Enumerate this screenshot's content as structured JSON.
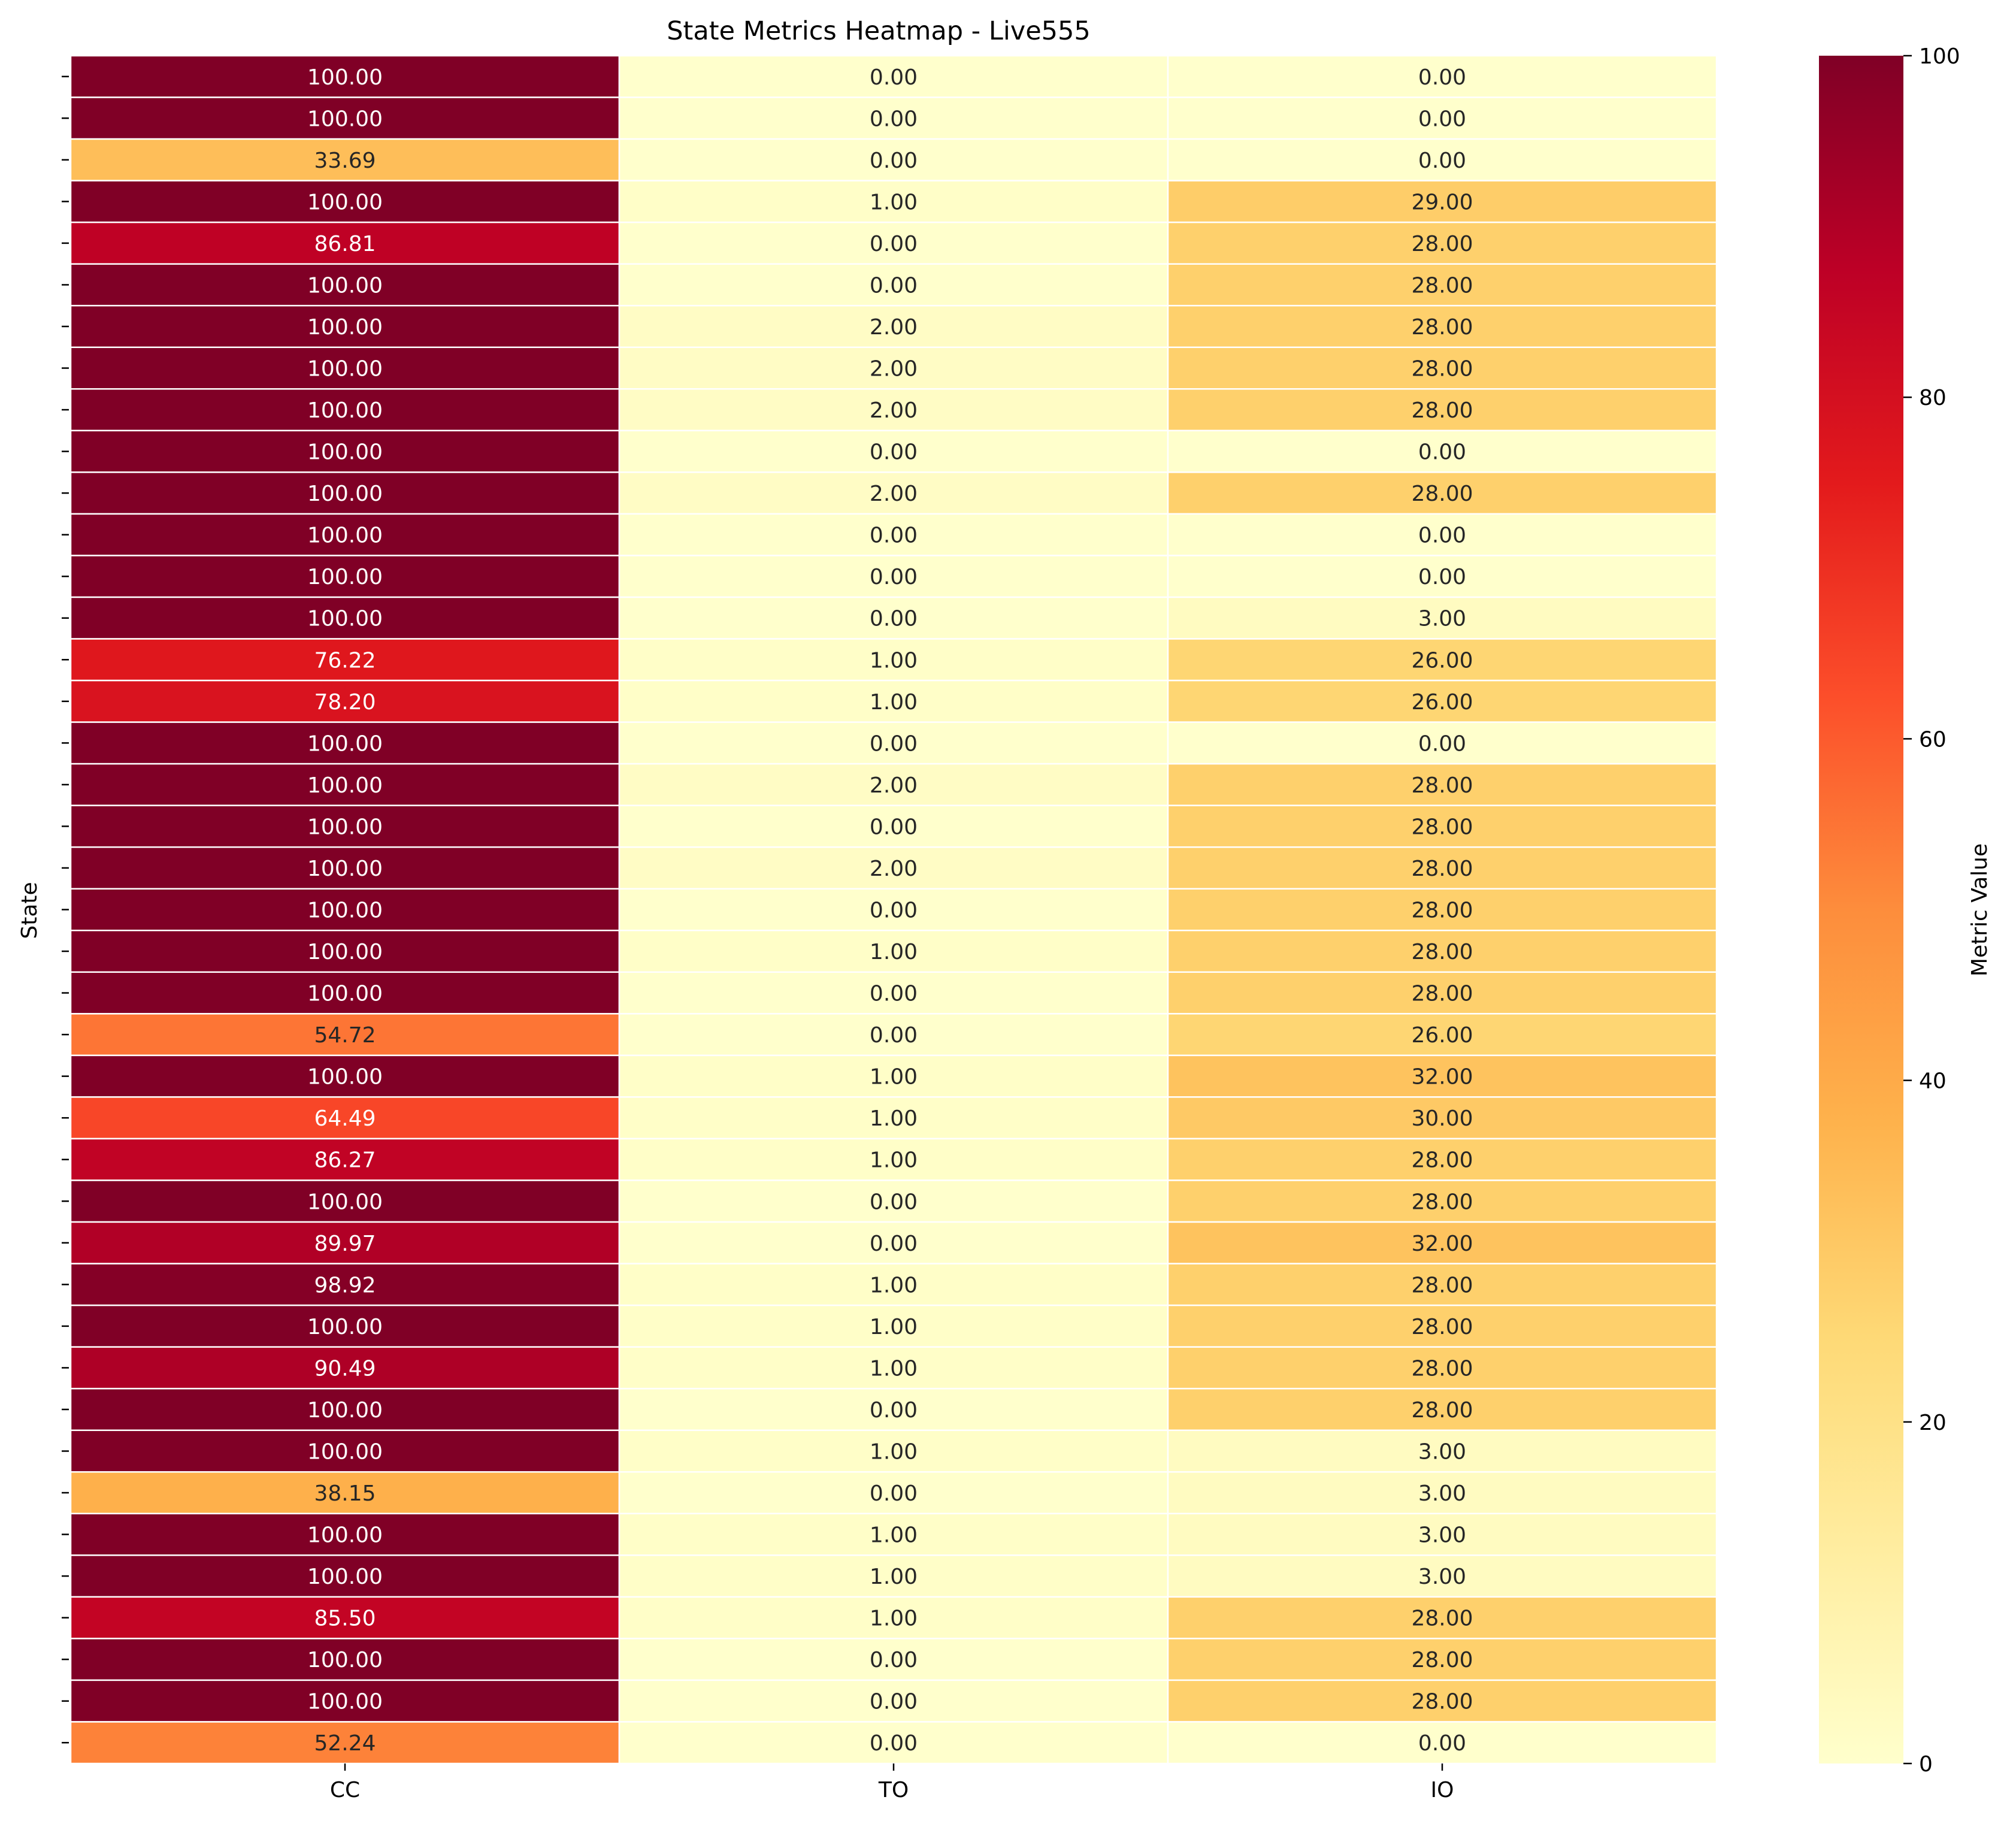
{
  "chart_data": {
    "type": "heatmap",
    "title": "State Metrics Heatmap - Live555",
    "xlabel": "",
    "ylabel": "State",
    "x_categories": [
      "CC",
      "TO",
      "IO"
    ],
    "y_tick_labels_shown": false,
    "values": [
      [
        100.0,
        0.0,
        0.0
      ],
      [
        100.0,
        0.0,
        0.0
      ],
      [
        33.69,
        0.0,
        0.0
      ],
      [
        100.0,
        1.0,
        29.0
      ],
      [
        86.81,
        0.0,
        28.0
      ],
      [
        100.0,
        0.0,
        28.0
      ],
      [
        100.0,
        2.0,
        28.0
      ],
      [
        100.0,
        2.0,
        28.0
      ],
      [
        100.0,
        2.0,
        28.0
      ],
      [
        100.0,
        0.0,
        0.0
      ],
      [
        100.0,
        2.0,
        28.0
      ],
      [
        100.0,
        0.0,
        0.0
      ],
      [
        100.0,
        0.0,
        0.0
      ],
      [
        100.0,
        0.0,
        3.0
      ],
      [
        76.22,
        1.0,
        26.0
      ],
      [
        78.2,
        1.0,
        26.0
      ],
      [
        100.0,
        0.0,
        0.0
      ],
      [
        100.0,
        2.0,
        28.0
      ],
      [
        100.0,
        0.0,
        28.0
      ],
      [
        100.0,
        2.0,
        28.0
      ],
      [
        100.0,
        0.0,
        28.0
      ],
      [
        100.0,
        1.0,
        28.0
      ],
      [
        100.0,
        0.0,
        28.0
      ],
      [
        54.72,
        0.0,
        26.0
      ],
      [
        100.0,
        1.0,
        32.0
      ],
      [
        64.49,
        1.0,
        30.0
      ],
      [
        86.27,
        1.0,
        28.0
      ],
      [
        100.0,
        0.0,
        28.0
      ],
      [
        89.97,
        0.0,
        32.0
      ],
      [
        98.92,
        1.0,
        28.0
      ],
      [
        100.0,
        1.0,
        28.0
      ],
      [
        90.49,
        1.0,
        28.0
      ],
      [
        100.0,
        0.0,
        28.0
      ],
      [
        100.0,
        1.0,
        3.0
      ],
      [
        38.15,
        0.0,
        3.0
      ],
      [
        100.0,
        1.0,
        3.0
      ],
      [
        100.0,
        1.0,
        3.0
      ],
      [
        85.5,
        1.0,
        28.0
      ],
      [
        100.0,
        0.0,
        28.0
      ],
      [
        100.0,
        0.0,
        28.0
      ],
      [
        52.24,
        0.0,
        0.0
      ]
    ],
    "value_format_decimals": 2,
    "colormap": "YlOrRd",
    "colormap_stops": [
      "#ffffcc",
      "#ffeda0",
      "#fed976",
      "#feb24c",
      "#fd8d3c",
      "#fc4e2a",
      "#e31a1c",
      "#bd0026",
      "#800026"
    ],
    "vmin": 0,
    "vmax": 100,
    "colorbar": {
      "label": "Metric Value",
      "ticks": [
        0,
        20,
        40,
        60,
        80,
        100
      ]
    },
    "grid": false,
    "cell_separator_color": "#ffffff",
    "dark_text_color": "#262626",
    "light_text_color": "#ffffff"
  }
}
